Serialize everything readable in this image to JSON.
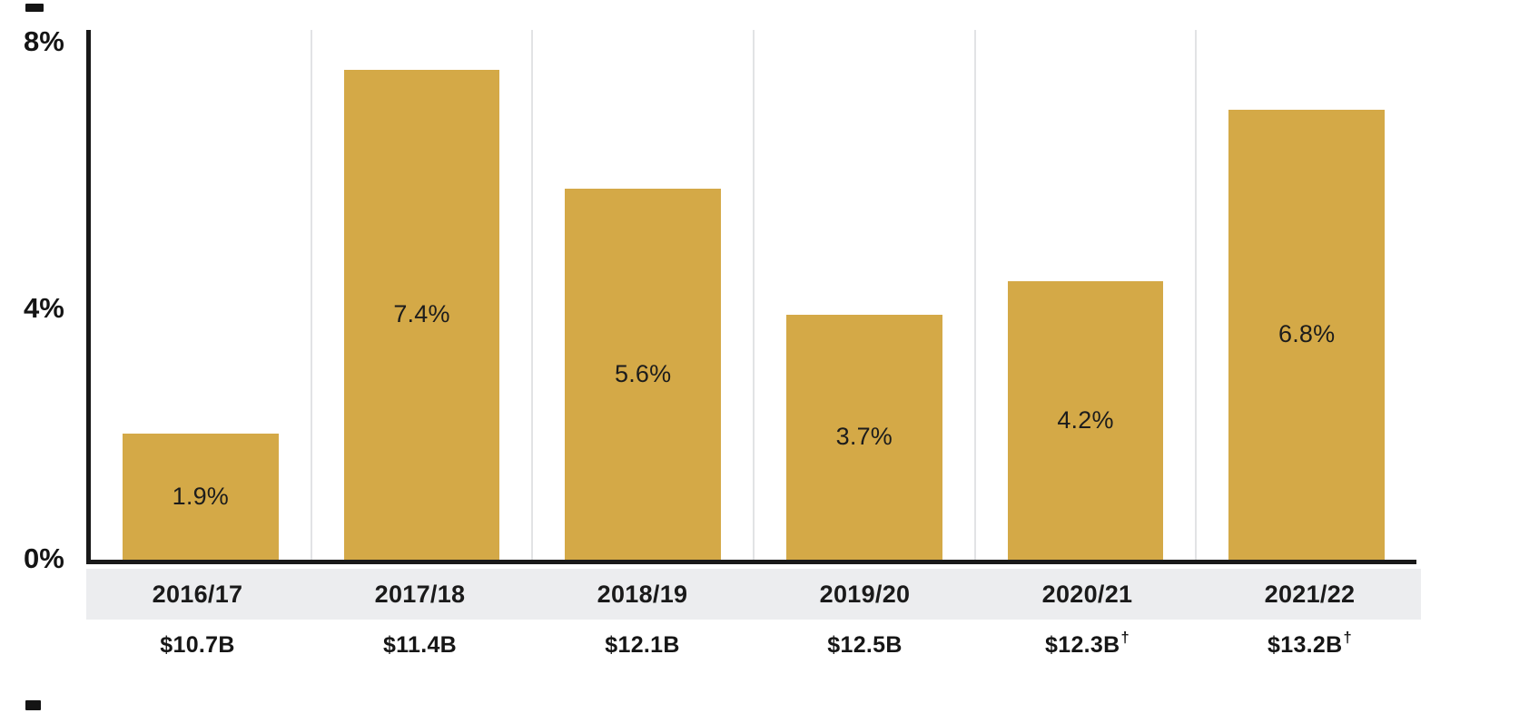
{
  "chart_data": {
    "type": "bar",
    "title": "",
    "xlabel": "",
    "ylabel": "",
    "categories": [
      "2016/17",
      "2017/18",
      "2018/19",
      "2019/20",
      "2020/21",
      "2021/22"
    ],
    "values": [
      1.9,
      7.4,
      5.6,
      3.7,
      4.2,
      6.8
    ],
    "bar_labels": [
      "1.9%",
      "7.4%",
      "5.6%",
      "3.7%",
      "4.2%",
      "6.8%"
    ],
    "sub_labels": [
      {
        "text": "$10.7B",
        "dagger": false
      },
      {
        "text": "$11.4B",
        "dagger": false
      },
      {
        "text": "$12.1B",
        "dagger": false
      },
      {
        "text": "$12.5B",
        "dagger": false
      },
      {
        "text": "$12.3B",
        "dagger": true
      },
      {
        "text": "$13.2B",
        "dagger": true
      }
    ],
    "y_tick_labels": [
      "8%",
      "4%",
      "0%"
    ],
    "ylim": [
      0,
      8
    ],
    "grid": "vertical-column-separators",
    "legend": "none",
    "colors": {
      "bar": "#d4a947",
      "axis": "#191919",
      "gridline": "#e2e3e5",
      "band_background": "#ecedef",
      "text": "#1b1b1b"
    }
  }
}
